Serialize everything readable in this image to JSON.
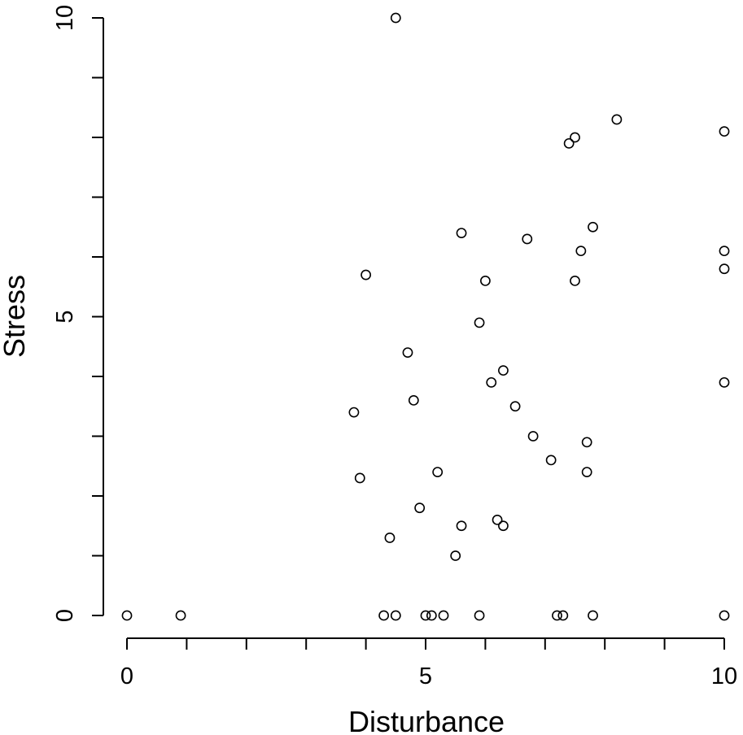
{
  "chart_data": {
    "type": "scatter",
    "title": "",
    "xlabel": "Disturbance",
    "ylabel": "Stress",
    "xlim": [
      0,
      10
    ],
    "ylim": [
      0,
      10
    ],
    "x_ticks": [
      0,
      1,
      2,
      3,
      4,
      5,
      6,
      7,
      8,
      9,
      10
    ],
    "x_tick_labels": [
      "0",
      "5",
      "10"
    ],
    "x_tick_label_values": [
      0,
      5,
      10
    ],
    "y_ticks": [
      0,
      1,
      2,
      3,
      4,
      5,
      6,
      7,
      8,
      9,
      10
    ],
    "y_tick_labels": [
      "0",
      "5",
      "10"
    ],
    "y_tick_label_values": [
      0,
      5,
      10
    ],
    "grid": false,
    "legend": "none",
    "points": [
      {
        "x": 0,
        "y": 0
      },
      {
        "x": 0.9,
        "y": 0
      },
      {
        "x": 4.3,
        "y": 0
      },
      {
        "x": 4.5,
        "y": 0
      },
      {
        "x": 5.0,
        "y": 0
      },
      {
        "x": 5.1,
        "y": 0
      },
      {
        "x": 5.3,
        "y": 0
      },
      {
        "x": 5.9,
        "y": 0
      },
      {
        "x": 7.2,
        "y": 0
      },
      {
        "x": 7.3,
        "y": 0
      },
      {
        "x": 7.8,
        "y": 0
      },
      {
        "x": 10,
        "y": 0
      },
      {
        "x": 5.5,
        "y": 1.0
      },
      {
        "x": 4.4,
        "y": 1.3
      },
      {
        "x": 5.6,
        "y": 1.5
      },
      {
        "x": 6.3,
        "y": 1.5
      },
      {
        "x": 6.2,
        "y": 1.6
      },
      {
        "x": 4.9,
        "y": 1.8
      },
      {
        "x": 3.9,
        "y": 2.3
      },
      {
        "x": 5.2,
        "y": 2.4
      },
      {
        "x": 7.7,
        "y": 2.4
      },
      {
        "x": 7.1,
        "y": 2.6
      },
      {
        "x": 7.7,
        "y": 2.9
      },
      {
        "x": 6.8,
        "y": 3.0
      },
      {
        "x": 3.8,
        "y": 3.4
      },
      {
        "x": 6.5,
        "y": 3.5
      },
      {
        "x": 4.8,
        "y": 3.6
      },
      {
        "x": 6.1,
        "y": 3.9
      },
      {
        "x": 10,
        "y": 3.9
      },
      {
        "x": 6.3,
        "y": 4.1
      },
      {
        "x": 4.7,
        "y": 4.4
      },
      {
        "x": 5.9,
        "y": 4.9
      },
      {
        "x": 4.0,
        "y": 5.7
      },
      {
        "x": 6.0,
        "y": 5.6
      },
      {
        "x": 7.5,
        "y": 5.6
      },
      {
        "x": 10,
        "y": 5.8
      },
      {
        "x": 7.6,
        "y": 6.1
      },
      {
        "x": 10,
        "y": 6.1
      },
      {
        "x": 6.7,
        "y": 6.3
      },
      {
        "x": 5.6,
        "y": 6.4
      },
      {
        "x": 7.8,
        "y": 6.5
      },
      {
        "x": 7.4,
        "y": 7.9
      },
      {
        "x": 7.5,
        "y": 8.0
      },
      {
        "x": 10,
        "y": 8.1
      },
      {
        "x": 8.2,
        "y": 8.3
      },
      {
        "x": 4.5,
        "y": 10.0
      }
    ]
  }
}
